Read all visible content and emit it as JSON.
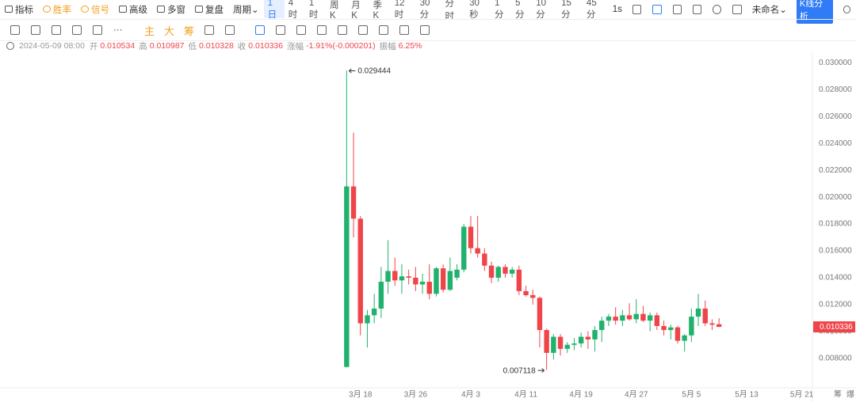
{
  "toolbar": {
    "tools": [
      "指标",
      "胜率",
      "信号",
      "高级",
      "多窗",
      "复盘",
      "周期"
    ],
    "periods": [
      "1日",
      "4时",
      "1时",
      "周K",
      "月K",
      "季K",
      "12时",
      "30分",
      "分时",
      "30秒",
      "1分",
      "5分",
      "10分",
      "15分",
      "45分"
    ],
    "interval": "1s",
    "layout_name": "未命名",
    "analysis_button": "K线分析"
  },
  "drawbar": {
    "chips": [
      "主",
      "大",
      "筹"
    ]
  },
  "info": {
    "date": "2024-05-09 08:00",
    "open_label": "开",
    "high_label": "高",
    "low_label": "低",
    "close_label": "收",
    "change_label": "涨幅",
    "change": "-1.91%(-0.000201)",
    "amplitude_label": "振幅",
    "amplitude": "6.25%"
  },
  "footer": {
    "items": [
      "筹",
      "爆"
    ]
  },
  "chart_data": {
    "type": "candlestick",
    "up_color": "#20b26c",
    "down_color": "#ef454a",
    "grid": false,
    "categories": [
      null,
      null,
      "3月 18",
      null,
      null,
      null,
      null,
      null,
      null,
      null,
      "3月 26",
      null,
      null,
      null,
      null,
      null,
      null,
      null,
      "4月 3",
      null,
      null,
      null,
      null,
      null,
      null,
      null,
      "4月 11",
      null,
      null,
      null,
      null,
      null,
      null,
      null,
      "4月 19",
      null,
      null,
      null,
      null,
      null,
      null,
      null,
      "4月 27",
      null,
      null,
      null,
      null,
      null,
      null,
      null,
      "5月 5",
      null,
      null,
      null,
      null,
      null,
      null,
      null,
      "5月 13",
      null,
      null,
      null,
      null,
      null,
      null,
      null,
      "5月 21",
      null
    ],
    "open": [
      0.00735,
      0.0208,
      0.0184,
      0.0106,
      0.0112,
      0.0117,
      0.0137,
      0.0145,
      0.0138,
      0.0141,
      0.014,
      0.0135,
      0.0137,
      0.0128,
      0.0147,
      0.0131,
      0.014,
      0.0146,
      0.0178,
      0.0162,
      0.0158,
      0.0149,
      0.014,
      0.0148,
      0.0143,
      0.0146,
      0.013,
      0.0127,
      0.0125,
      0.0101,
      0.0084,
      0.0096,
      0.0087,
      0.009,
      0.0091,
      0.0096,
      0.0094,
      0.0101,
      0.0108,
      0.0111,
      0.0108,
      0.0112,
      0.0109,
      0.0113,
      0.0108,
      0.0112,
      0.0104,
      0.0101,
      0.0103,
      0.0093,
      0.0097,
      0.0111,
      0.0117,
      0.0106,
      0.010534,
      null,
      null,
      null,
      null,
      null,
      null,
      null,
      null,
      null,
      null,
      null,
      null,
      null
    ],
    "high": [
      0.029444,
      0.0248,
      0.0186,
      0.0116,
      0.0128,
      0.0148,
      0.0168,
      0.0155,
      0.015,
      0.0146,
      0.0148,
      0.0143,
      0.015,
      0.0148,
      0.015,
      0.0155,
      0.015,
      0.018,
      0.0186,
      0.0186,
      0.0162,
      0.0152,
      0.0149,
      0.015,
      0.0148,
      0.0149,
      0.0134,
      0.0131,
      0.0126,
      0.0102,
      0.0098,
      0.0098,
      0.0092,
      0.0095,
      0.0099,
      0.01,
      0.0104,
      0.0111,
      0.0113,
      0.0118,
      0.0116,
      0.0121,
      0.0124,
      0.0119,
      0.0114,
      0.0114,
      0.0108,
      0.0105,
      0.0104,
      0.0098,
      0.0117,
      0.0128,
      0.0123,
      0.0109,
      0.010987,
      null,
      null,
      null,
      null,
      null,
      null,
      null,
      null,
      null,
      null,
      null,
      null,
      null
    ],
    "low": [
      0.0073,
      0.017,
      0.0097,
      0.0088,
      0.0106,
      0.011,
      0.0128,
      0.0134,
      0.0128,
      0.0135,
      0.013,
      0.0128,
      0.0124,
      0.0126,
      0.0129,
      0.013,
      0.0138,
      0.0144,
      0.0158,
      0.0155,
      0.0145,
      0.0136,
      0.0137,
      0.014,
      0.014,
      0.0127,
      0.0126,
      0.012,
      0.0088,
      0.007118,
      0.0079,
      0.0082,
      0.0084,
      0.0086,
      0.0088,
      0.0087,
      0.0085,
      0.0092,
      0.0104,
      0.0105,
      0.0104,
      0.0108,
      0.0106,
      0.0107,
      0.01,
      0.0101,
      0.0097,
      0.0094,
      0.0091,
      0.0085,
      0.0092,
      0.0104,
      0.0104,
      0.0101,
      0.010328,
      null,
      null,
      null,
      null,
      null,
      null,
      null,
      null,
      null,
      null,
      null,
      null,
      null
    ],
    "close": [
      0.0208,
      0.0184,
      0.0106,
      0.0112,
      0.0117,
      0.0137,
      0.0145,
      0.0138,
      0.0141,
      0.014,
      0.0135,
      0.0137,
      0.0128,
      0.0147,
      0.0131,
      0.0145,
      0.0146,
      0.0178,
      0.0162,
      0.0158,
      0.0149,
      0.014,
      0.0148,
      0.0143,
      0.0146,
      0.013,
      0.0127,
      0.0125,
      0.0101,
      0.0084,
      0.0096,
      0.0087,
      0.009,
      0.0091,
      0.0096,
      0.0094,
      0.0101,
      0.0108,
      0.0111,
      0.0108,
      0.0112,
      0.0109,
      0.0113,
      0.0108,
      0.0112,
      0.0104,
      0.0101,
      0.0103,
      0.0093,
      0.0097,
      0.0111,
      0.0117,
      0.0106,
      0.0105,
      0.010336,
      null,
      null,
      null,
      null,
      null,
      null,
      null,
      null,
      null,
      null,
      null,
      null,
      null
    ],
    "ylim": [
      0.0058,
      0.0308
    ],
    "yticks": [
      {
        "value": 0.008,
        "label": "0.008000"
      },
      {
        "value": 0.01,
        "label": "0.010000"
      },
      {
        "value": 0.012,
        "label": "0.012000"
      },
      {
        "value": 0.014,
        "label": "0.014000"
      },
      {
        "value": 0.016,
        "label": "0.016000"
      },
      {
        "value": 0.018,
        "label": "0.018000"
      },
      {
        "value": 0.02,
        "label": "0.020000"
      },
      {
        "value": 0.022,
        "label": "0.022000"
      },
      {
        "value": 0.024,
        "label": "0.024000"
      },
      {
        "value": 0.026,
        "label": "0.026000"
      },
      {
        "value": 0.028,
        "label": "0.028000"
      },
      {
        "value": 0.03,
        "label": "0.030000"
      }
    ]
  }
}
